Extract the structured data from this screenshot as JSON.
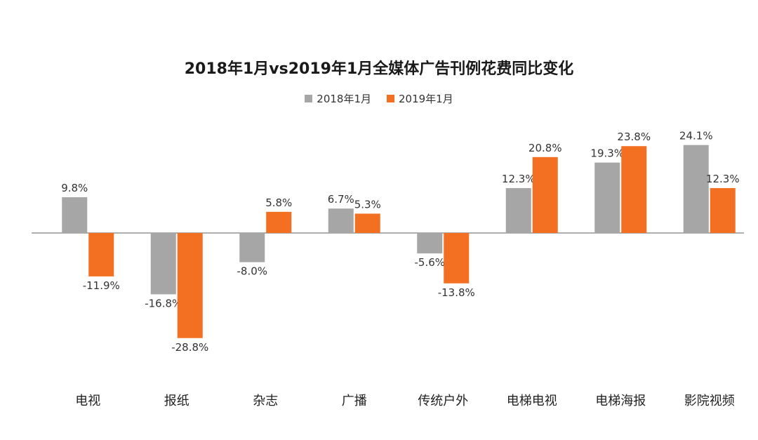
{
  "chart_data": {
    "type": "bar",
    "title": "2018年1月vs2019年1月全媒体广告刊例花费同比变化",
    "categories": [
      "电视",
      "报纸",
      "杂志",
      "广播",
      "传统户外",
      "电梯电视",
      "电梯海报",
      "影院视频"
    ],
    "series": [
      {
        "name": "2018年1月",
        "color": "#a6a6a6",
        "values": [
          9.8,
          -16.8,
          -8.0,
          6.7,
          -5.6,
          12.3,
          19.3,
          24.1
        ],
        "labels": [
          "9.8%",
          "-16.8%",
          "-8.0%",
          "6.7%",
          "-5.6%",
          "12.3%",
          "19.3%",
          "24.1%"
        ]
      },
      {
        "name": "2019年1月",
        "color": "#f36f21",
        "values": [
          -11.9,
          -28.8,
          5.8,
          5.3,
          -13.8,
          20.8,
          23.8,
          12.3
        ],
        "labels": [
          "-11.9%",
          "-28.8%",
          "5.8%",
          "5.3%",
          "-13.8%",
          "20.8%",
          "23.8%",
          "12.3%"
        ]
      }
    ],
    "ylim": [
      -35,
      30
    ],
    "xlabel": "",
    "ylabel": "",
    "grid": false,
    "legend": "top-center"
  }
}
